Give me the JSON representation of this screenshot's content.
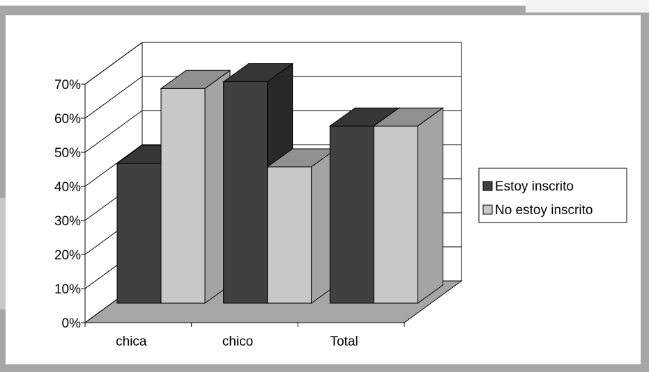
{
  "chart_data": {
    "type": "bar",
    "categories": [
      "chica",
      "chico",
      "Total"
    ],
    "series": [
      {
        "name": "Estoy inscrito",
        "values": [
          0.41,
          0.65,
          0.52
        ],
        "color": "#404040"
      },
      {
        "name": "No estoy inscrito",
        "values": [
          0.63,
          0.4,
          0.52
        ],
        "color": "#c8c8c8"
      }
    ],
    "yticks": [
      "0%",
      "10%",
      "20%",
      "30%",
      "40%",
      "50%",
      "60%",
      "70%"
    ],
    "ylim": [
      0,
      0.7
    ],
    "grid": true,
    "legend": "right",
    "title": "",
    "xlabel": "",
    "ylabel": ""
  }
}
